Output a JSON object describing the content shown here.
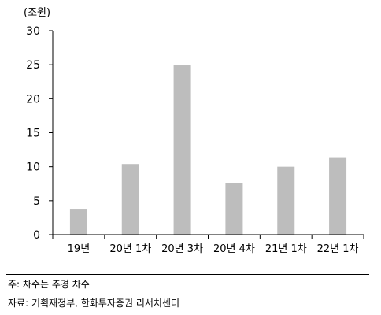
{
  "chart_data": {
    "type": "bar",
    "unit_label": "(조원)",
    "categories": [
      "19년",
      "20년 1차",
      "20년 3차",
      "20년 4차",
      "21년 1차",
      "22년 1차"
    ],
    "values": [
      3.7,
      10.4,
      24.9,
      7.6,
      10.0,
      11.4
    ],
    "ylim": [
      0,
      30
    ],
    "yticks": [
      0,
      5,
      10,
      15,
      20,
      25,
      30
    ],
    "bar_color": "#bdbdbd",
    "grid": false
  },
  "notes": {
    "note": "주: 차수는 추경 차수",
    "source": "자료: 기획재정부, 한화투자증권 리서치센터"
  }
}
